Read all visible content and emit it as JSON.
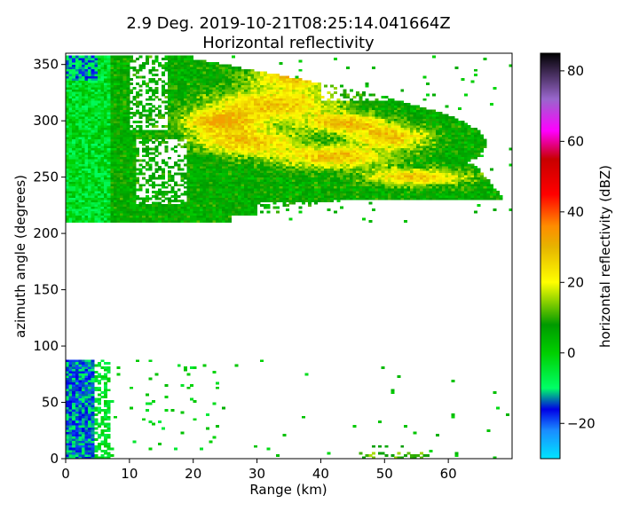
{
  "chart_data": {
    "type": "heatmap",
    "title_line1": "2.9 Deg. 2019-10-21T08:25:14.041664Z",
    "title_line2": "Horizontal reflectivity",
    "xlabel": "Range (km)",
    "ylabel": "azimuth angle (degrees)",
    "xlim": [
      0,
      70
    ],
    "ylim": [
      0,
      360
    ],
    "xticks": [
      0,
      10,
      20,
      30,
      40,
      50,
      60
    ],
    "yticks": [
      0,
      50,
      100,
      150,
      200,
      250,
      300,
      350
    ],
    "colorbar": {
      "label": "horizontal reflectivity (dBZ)",
      "range": [
        -30,
        85
      ],
      "ticks": [
        -20,
        0,
        20,
        40,
        60,
        80
      ],
      "colors": [
        {
          "v": -30,
          "c": "#00e5ff"
        },
        {
          "v": -22,
          "c": "#1a8cff"
        },
        {
          "v": -16,
          "c": "#0000e6"
        },
        {
          "v": -10,
          "c": "#00ff66"
        },
        {
          "v": 0,
          "c": "#00d000"
        },
        {
          "v": 8,
          "c": "#009a00"
        },
        {
          "v": 14,
          "c": "#80cc00"
        },
        {
          "v": 20,
          "c": "#ffff00"
        },
        {
          "v": 30,
          "c": "#e6b400"
        },
        {
          "v": 36,
          "c": "#ff8c00"
        },
        {
          "v": 45,
          "c": "#ff0000"
        },
        {
          "v": 55,
          "c": "#c80000"
        },
        {
          "v": 63,
          "c": "#ff00ff"
        },
        {
          "v": 72,
          "c": "#9966cc"
        },
        {
          "v": 85,
          "c": "#000000"
        }
      ]
    },
    "regions": [
      {
        "name": "near-range clutter (north sector)",
        "range_km": [
          0,
          7
        ],
        "azimuth_deg": [
          210,
          360
        ],
        "dbz": [
          -15,
          5
        ]
      },
      {
        "name": "near-range clutter (east sector)",
        "range_km": [
          0,
          7
        ],
        "azimuth_deg": [
          0,
          87
        ],
        "dbz": [
          -20,
          -5
        ]
      },
      {
        "name": "precipitation band",
        "range_km": [
          8,
          70
        ],
        "azimuth_deg": [
          210,
          358
        ],
        "dbz": [
          0,
          33
        ]
      },
      {
        "name": "reflectivity core",
        "range_km": [
          22,
          50
        ],
        "azimuth_deg": [
          255,
          345
        ],
        "dbz": [
          20,
          33
        ]
      },
      {
        "name": "no data",
        "range_km": [
          0,
          70
        ],
        "azimuth_deg": [
          87,
          210
        ],
        "dbz": null
      }
    ]
  }
}
